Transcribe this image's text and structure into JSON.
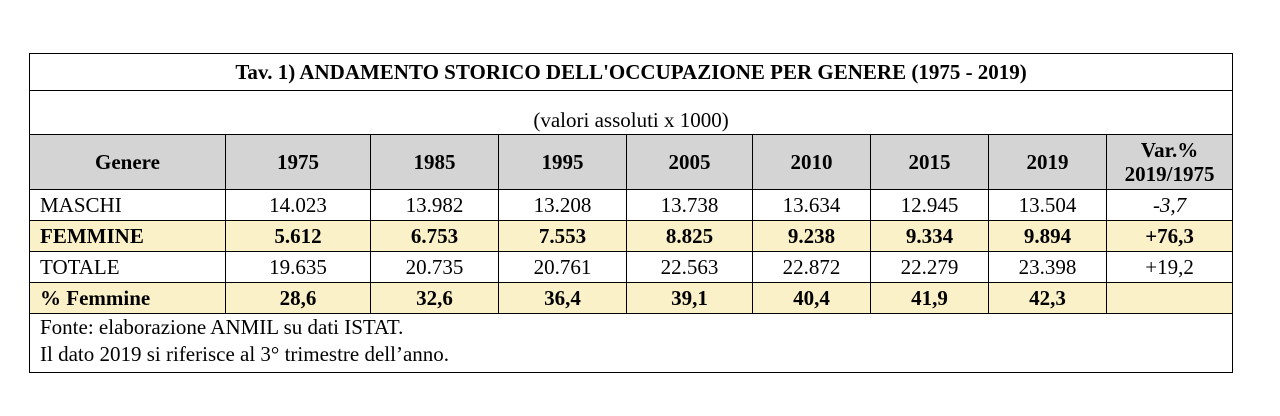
{
  "table": {
    "title": "Tav. 1)  ANDAMENTO STORICO DELL'OCCUPAZIONE PER  GENERE (1975 - 2019)",
    "unit_note": "(valori assoluti x 1000)",
    "header": {
      "genere": "Genere",
      "years": [
        "1975",
        "1985",
        "1995",
        "2005",
        "2010",
        "2015",
        "2019"
      ],
      "var_line1": "Var.%",
      "var_line2": "2019/1975"
    },
    "rows": [
      {
        "label": "MASCHI",
        "values": [
          "14.023",
          "13.982",
          "13.208",
          "13.738",
          "13.634",
          "12.945",
          "13.504"
        ],
        "var": "-3,7"
      },
      {
        "label": "FEMMINE",
        "values": [
          "5.612",
          "6.753",
          "7.553",
          "8.825",
          "9.238",
          "9.334",
          "9.894"
        ],
        "var": "+76,3"
      },
      {
        "label": "TOTALE",
        "values": [
          "19.635",
          "20.735",
          "20.761",
          "22.563",
          "22.872",
          "22.279",
          "23.398"
        ],
        "var": "+19,2"
      },
      {
        "label": "% Femmine",
        "values": [
          "28,6",
          "32,6",
          "36,4",
          "39,1",
          "40,4",
          "41,9",
          "42,3"
        ],
        "var": ""
      }
    ],
    "notes": [
      "Fonte: elaborazione ANMIL su dati ISTAT.",
      "Il dato 2019 si riferisce al 3° trimestre dell’anno."
    ],
    "colors": {
      "header_bg": "#d4d4d4",
      "highlight_bg": "#fbf1c8"
    }
  }
}
